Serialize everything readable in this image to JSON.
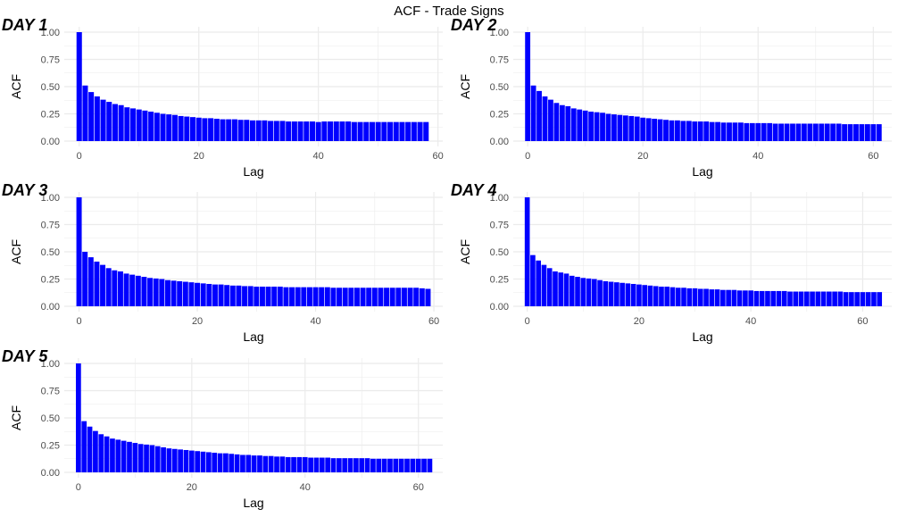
{
  "title": "ACF - Trade Signs",
  "bar_color": "#0000ff",
  "grid_color": "#ebebeb",
  "chart_data": [
    {
      "type": "bar",
      "tag": "DAY 1",
      "xlabel": "Lag",
      "ylabel": "ACF",
      "xlim": [
        0,
        58
      ],
      "ylim": [
        0,
        1
      ],
      "xticks": [
        0,
        20,
        40,
        60
      ],
      "yticks": [
        "0.00",
        "0.25",
        "0.50",
        "0.75",
        "1.00"
      ],
      "values": [
        1.0,
        0.51,
        0.45,
        0.41,
        0.38,
        0.36,
        0.34,
        0.33,
        0.31,
        0.3,
        0.29,
        0.28,
        0.27,
        0.26,
        0.25,
        0.245,
        0.24,
        0.23,
        0.225,
        0.22,
        0.215,
        0.21,
        0.21,
        0.205,
        0.2,
        0.2,
        0.2,
        0.195,
        0.195,
        0.19,
        0.19,
        0.19,
        0.185,
        0.185,
        0.185,
        0.18,
        0.18,
        0.18,
        0.18,
        0.18,
        0.175,
        0.18,
        0.18,
        0.18,
        0.18,
        0.18,
        0.175,
        0.175,
        0.175,
        0.175,
        0.175,
        0.175,
        0.175,
        0.175,
        0.175,
        0.175,
        0.175,
        0.175,
        0.175
      ]
    },
    {
      "type": "bar",
      "tag": "DAY 2",
      "xlabel": "Lag",
      "ylabel": "ACF",
      "xlim": [
        0,
        61
      ],
      "ylim": [
        0,
        1
      ],
      "xticks": [
        0,
        20,
        40,
        60
      ],
      "yticks": [
        "0.00",
        "0.25",
        "0.50",
        "0.75",
        "1.00"
      ],
      "values": [
        1.0,
        0.51,
        0.46,
        0.41,
        0.38,
        0.35,
        0.33,
        0.32,
        0.3,
        0.29,
        0.28,
        0.27,
        0.265,
        0.26,
        0.25,
        0.245,
        0.24,
        0.235,
        0.23,
        0.225,
        0.215,
        0.21,
        0.205,
        0.2,
        0.195,
        0.19,
        0.19,
        0.185,
        0.185,
        0.18,
        0.18,
        0.18,
        0.175,
        0.175,
        0.17,
        0.17,
        0.17,
        0.17,
        0.165,
        0.165,
        0.165,
        0.165,
        0.165,
        0.16,
        0.16,
        0.16,
        0.16,
        0.16,
        0.16,
        0.16,
        0.16,
        0.16,
        0.16,
        0.16,
        0.16,
        0.155,
        0.155,
        0.155,
        0.155,
        0.155,
        0.155,
        0.155
      ]
    },
    {
      "type": "bar",
      "tag": "DAY 3",
      "xlabel": "Lag",
      "ylabel": "ACF",
      "xlim": [
        0,
        59
      ],
      "ylim": [
        0,
        1
      ],
      "xticks": [
        0,
        20,
        40,
        60
      ],
      "yticks": [
        "0.00",
        "0.25",
        "0.50",
        "0.75",
        "1.00"
      ],
      "values": [
        1.0,
        0.5,
        0.45,
        0.41,
        0.38,
        0.35,
        0.33,
        0.32,
        0.3,
        0.29,
        0.28,
        0.27,
        0.26,
        0.255,
        0.25,
        0.24,
        0.235,
        0.23,
        0.225,
        0.22,
        0.215,
        0.21,
        0.205,
        0.2,
        0.2,
        0.195,
        0.19,
        0.19,
        0.185,
        0.185,
        0.18,
        0.18,
        0.18,
        0.18,
        0.18,
        0.175,
        0.175,
        0.175,
        0.175,
        0.175,
        0.175,
        0.175,
        0.175,
        0.17,
        0.17,
        0.17,
        0.17,
        0.17,
        0.17,
        0.17,
        0.17,
        0.17,
        0.17,
        0.17,
        0.17,
        0.17,
        0.17,
        0.17,
        0.165,
        0.16
      ]
    },
    {
      "type": "bar",
      "tag": "DAY 4",
      "xlabel": "Lag",
      "ylabel": "ACF",
      "xlim": [
        0,
        63
      ],
      "ylim": [
        0,
        1
      ],
      "xticks": [
        0,
        20,
        40,
        60
      ],
      "yticks": [
        "0.00",
        "0.25",
        "0.50",
        "0.75",
        "1.00"
      ],
      "values": [
        1.0,
        0.47,
        0.42,
        0.38,
        0.35,
        0.32,
        0.31,
        0.3,
        0.28,
        0.27,
        0.26,
        0.255,
        0.25,
        0.24,
        0.23,
        0.225,
        0.22,
        0.215,
        0.21,
        0.205,
        0.2,
        0.195,
        0.19,
        0.185,
        0.18,
        0.18,
        0.175,
        0.17,
        0.17,
        0.165,
        0.165,
        0.16,
        0.16,
        0.155,
        0.155,
        0.15,
        0.15,
        0.15,
        0.145,
        0.145,
        0.145,
        0.14,
        0.14,
        0.14,
        0.14,
        0.14,
        0.14,
        0.135,
        0.135,
        0.135,
        0.135,
        0.135,
        0.135,
        0.135,
        0.135,
        0.135,
        0.135,
        0.13,
        0.13,
        0.13,
        0.13,
        0.13,
        0.13,
        0.13
      ]
    },
    {
      "type": "bar",
      "tag": "DAY 5",
      "xlabel": "Lag",
      "ylabel": "ACF",
      "xlim": [
        0,
        62
      ],
      "ylim": [
        0,
        1
      ],
      "xticks": [
        0,
        20,
        40,
        60
      ],
      "yticks": [
        "0.00",
        "0.25",
        "0.50",
        "0.75",
        "1.00"
      ],
      "values": [
        1.0,
        0.47,
        0.42,
        0.38,
        0.35,
        0.33,
        0.31,
        0.3,
        0.29,
        0.28,
        0.27,
        0.26,
        0.255,
        0.25,
        0.24,
        0.23,
        0.22,
        0.215,
        0.21,
        0.205,
        0.2,
        0.195,
        0.19,
        0.185,
        0.18,
        0.175,
        0.175,
        0.17,
        0.165,
        0.16,
        0.16,
        0.155,
        0.155,
        0.15,
        0.15,
        0.145,
        0.145,
        0.14,
        0.14,
        0.14,
        0.14,
        0.135,
        0.135,
        0.135,
        0.135,
        0.13,
        0.13,
        0.13,
        0.13,
        0.13,
        0.13,
        0.13,
        0.125,
        0.125,
        0.125,
        0.125,
        0.125,
        0.125,
        0.125,
        0.125,
        0.125,
        0.125,
        0.125
      ]
    }
  ]
}
